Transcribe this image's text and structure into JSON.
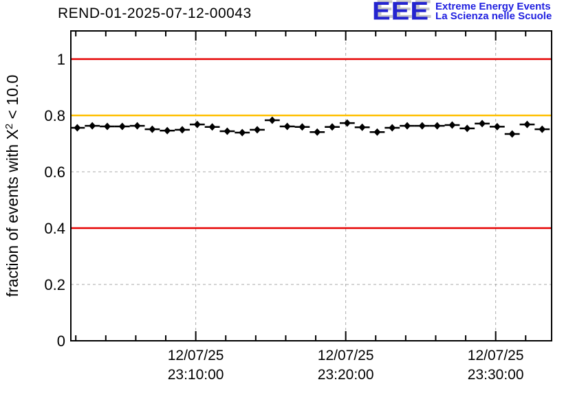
{
  "header": {
    "title": "REND-01-2025-07-12-00043"
  },
  "logo": {
    "acronym": "EEE",
    "line1": "Extreme Energy Events",
    "line2": "La Scienza nelle Scuole",
    "text_color": "#2020e0",
    "shadow_color": "#c6c6c6"
  },
  "chart_data": {
    "type": "scatter",
    "title": "REND-01-2025-07-12-00043",
    "xlabel": "",
    "ylabel": "fraction of events with X^2 < 10.0",
    "ylabel_parts": {
      "prefix": "fraction of events with X",
      "superscript": "2",
      "suffix": " < 10.0"
    },
    "ylim": [
      0,
      1.1
    ],
    "x_range_minutes": [
      1.67,
      33.73
    ],
    "grid": true,
    "grid_color": "#a9a9a9",
    "marker_color": "#000000",
    "legend": "none",
    "y_major_ticks": [
      {
        "value": 0,
        "label": "0"
      },
      {
        "value": 0.2,
        "label": "0.2"
      },
      {
        "value": 0.4,
        "label": "0.4"
      },
      {
        "value": 0.6,
        "label": "0.6"
      },
      {
        "value": 0.8,
        "label": "0.8"
      },
      {
        "value": 1.0,
        "label": "1"
      }
    ],
    "y_minor_step": 0.05,
    "x_major_ticks": [
      {
        "minute": 10,
        "label_date": "12/07/25",
        "label_time": "23:10:00"
      },
      {
        "minute": 20,
        "label_date": "12/07/25",
        "label_time": "23:20:00"
      },
      {
        "minute": 30,
        "label_date": "12/07/25",
        "label_time": "23:30:00"
      }
    ],
    "x_minor_step_minutes": 2,
    "reference_lines": [
      {
        "y": 1.0,
        "color": "#e60000"
      },
      {
        "y": 0.8,
        "color": "#ffc000"
      },
      {
        "y": 0.4,
        "color": "#e60000"
      }
    ],
    "series": [
      {
        "name": "fraction of events with chi2 < 10",
        "marker": "diamond",
        "bin_halfwidth_minutes": 0.5,
        "y_error": 0.008,
        "x_minutes": [
          2.1,
          3.1,
          4.1,
          5.1,
          6.1,
          7.1,
          8.1,
          9.1,
          10.1,
          11.1,
          12.1,
          13.1,
          14.1,
          15.1,
          16.1,
          17.1,
          18.1,
          19.1,
          20.1,
          21.1,
          22.1,
          23.1,
          24.1,
          25.1,
          26.1,
          27.1,
          28.1,
          29.1,
          30.1,
          31.1,
          32.1,
          33.1
        ],
        "values": [
          0.756,
          0.763,
          0.761,
          0.761,
          0.763,
          0.751,
          0.746,
          0.749,
          0.768,
          0.759,
          0.744,
          0.739,
          0.749,
          0.783,
          0.761,
          0.759,
          0.741,
          0.759,
          0.773,
          0.758,
          0.741,
          0.756,
          0.763,
          0.763,
          0.763,
          0.766,
          0.754,
          0.771,
          0.76,
          0.734,
          0.768,
          0.751
        ]
      }
    ]
  }
}
